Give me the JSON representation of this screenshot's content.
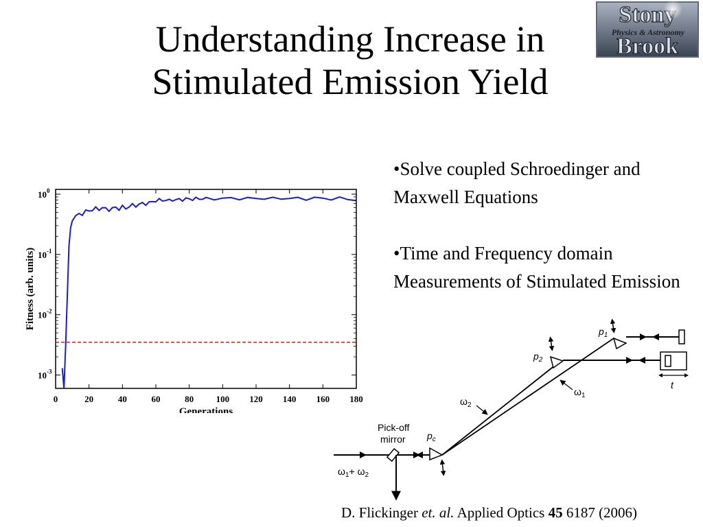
{
  "slide": {
    "title_line1": "Understanding Increase in",
    "title_line2": "Stimulated Emission Yield"
  },
  "logo": {
    "text_top": "Stony",
    "text_middle": "Physics & Astronomy",
    "text_bottom": "Brook"
  },
  "bullets": [
    {
      "text": "•Solve coupled Schroedinger and Maxwell Equations"
    },
    {
      "text": "•Time and Frequency domain Measurements of Stimulated Emission"
    }
  ],
  "citation": {
    "authors": "D. Flickinger",
    "etal": "et. al.",
    "journal": "Applied Optics",
    "volume": "45",
    "pages_year": "6187 (2006)"
  },
  "diagram": {
    "pickoff_label_1": "Pick-off",
    "pickoff_label_2": "mirror",
    "pc_label": "p",
    "pc_sub": "c",
    "p1_label": "p",
    "p1_sub": "1",
    "p2_label": "p",
    "p2_sub": "2",
    "omega1_label": "ω",
    "omega1_sub": "1",
    "omega2_label": "ω",
    "omega2_sub": "2",
    "input_label_a": "ω",
    "input_label_a_sub": "1",
    "input_label_plus": "+ ω",
    "input_label_b_sub": "2",
    "t_label": "t"
  },
  "chart_data": {
    "type": "line",
    "title": "",
    "xlabel": "Generations",
    "ylabel": "Fitness (arb. units)",
    "xlim": [
      0,
      180
    ],
    "ylim": [
      0.0006,
      1.2
    ],
    "yscale": "log",
    "grid": false,
    "x_ticks": [
      0,
      20,
      40,
      60,
      80,
      100,
      120,
      140,
      160,
      180
    ],
    "y_ticks": [
      {
        "base": "10",
        "exp": "0",
        "value": 1
      },
      {
        "base": "10",
        "exp": "-1",
        "value": 0.1
      },
      {
        "base": "10",
        "exp": "-2",
        "value": 0.01
      },
      {
        "base": "10",
        "exp": "-3",
        "value": 0.001
      }
    ],
    "series": [
      {
        "color": "#1a1ad6",
        "x": [
          4,
          5,
          6,
          7,
          8,
          9,
          10,
          12,
          14,
          16,
          18,
          20,
          22,
          24,
          26,
          28,
          30,
          32,
          34,
          36,
          38,
          40,
          42,
          44,
          46,
          48,
          50,
          52,
          54,
          56,
          58,
          60,
          62,
          64,
          66,
          68,
          70,
          72,
          74,
          76,
          78,
          80,
          82,
          84,
          86,
          88,
          90,
          95,
          100,
          105,
          110,
          115,
          120,
          125,
          130,
          135,
          140,
          145,
          150,
          155,
          160,
          165,
          170,
          175,
          180
        ],
        "y": [
          0.0013,
          0.0006,
          0.003,
          0.02,
          0.14,
          0.28,
          0.36,
          0.44,
          0.48,
          0.47,
          0.52,
          0.53,
          0.55,
          0.58,
          0.56,
          0.6,
          0.57,
          0.55,
          0.58,
          0.6,
          0.57,
          0.62,
          0.58,
          0.63,
          0.66,
          0.64,
          0.68,
          0.7,
          0.69,
          0.72,
          0.75,
          0.78,
          0.8,
          0.79,
          0.8,
          0.78,
          0.81,
          0.8,
          0.82,
          0.81,
          0.83,
          0.84,
          0.82,
          0.84,
          0.85,
          0.83,
          0.84,
          0.85,
          0.84,
          0.86,
          0.85,
          0.84,
          0.86,
          0.85,
          0.84,
          0.86,
          0.85,
          0.85,
          0.84,
          0.86,
          0.85,
          0.84,
          0.85,
          0.83,
          0.8
        ]
      }
    ],
    "threshold": {
      "value": 0.0035,
      "color": "#d42020",
      "style": "dashed"
    }
  }
}
